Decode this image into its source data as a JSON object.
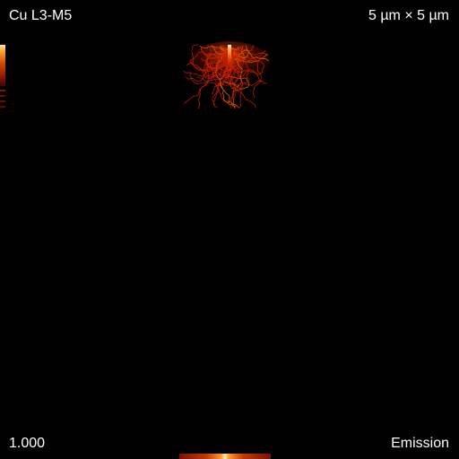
{
  "overlay": {
    "element_line": "Cu L3-M5",
    "field_of_view": "5 µm × 5 µm",
    "intensity_value": "1.000",
    "signal_mode": "Emission"
  },
  "colors": {
    "background": "#000000",
    "text": "#ffffff",
    "trajectory": "#c81e00",
    "core": "#ffd27a"
  }
}
